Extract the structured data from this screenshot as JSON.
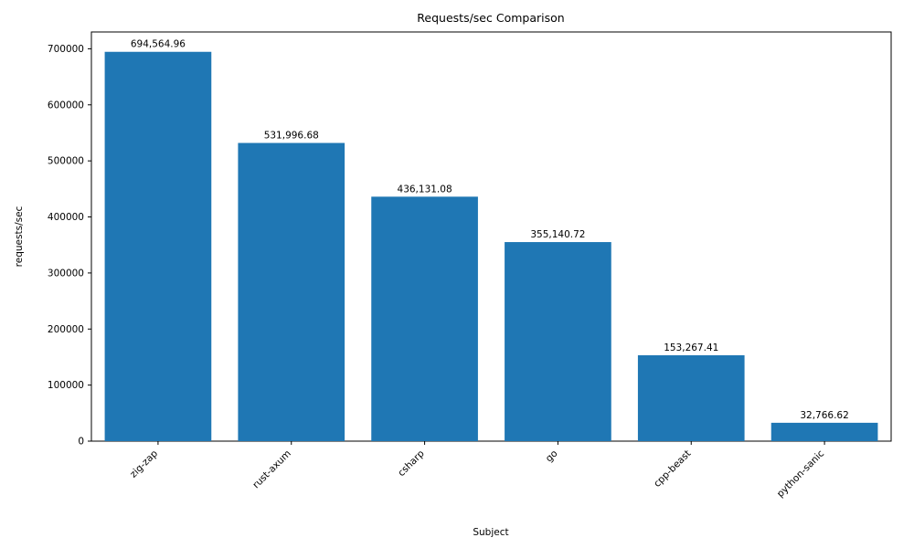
{
  "chart_data": {
    "type": "bar",
    "title": "Requests/sec Comparison",
    "xlabel": "Subject",
    "ylabel": "requests/sec",
    "categories": [
      "zig-zap",
      "rust-axum",
      "csharp",
      "go",
      "cpp-beast",
      "python-sanic"
    ],
    "values": [
      694564.96,
      531996.68,
      436131.08,
      355140.72,
      153267.41,
      32766.62
    ],
    "value_labels": [
      "694,564.96",
      "531,996.68",
      "436,131.08",
      "355,140.72",
      "153,267.41",
      "32,766.62"
    ],
    "yticks": [
      0,
      100000,
      200000,
      300000,
      400000,
      500000,
      600000,
      700000
    ],
    "ytick_labels": [
      "0",
      "100000",
      "200000",
      "300000",
      "400000",
      "500000",
      "600000",
      "700000"
    ],
    "ylim": [
      0,
      730000
    ],
    "bar_color": "#1f77b4",
    "axis_color": "#000000",
    "grid": false,
    "legend": false
  }
}
